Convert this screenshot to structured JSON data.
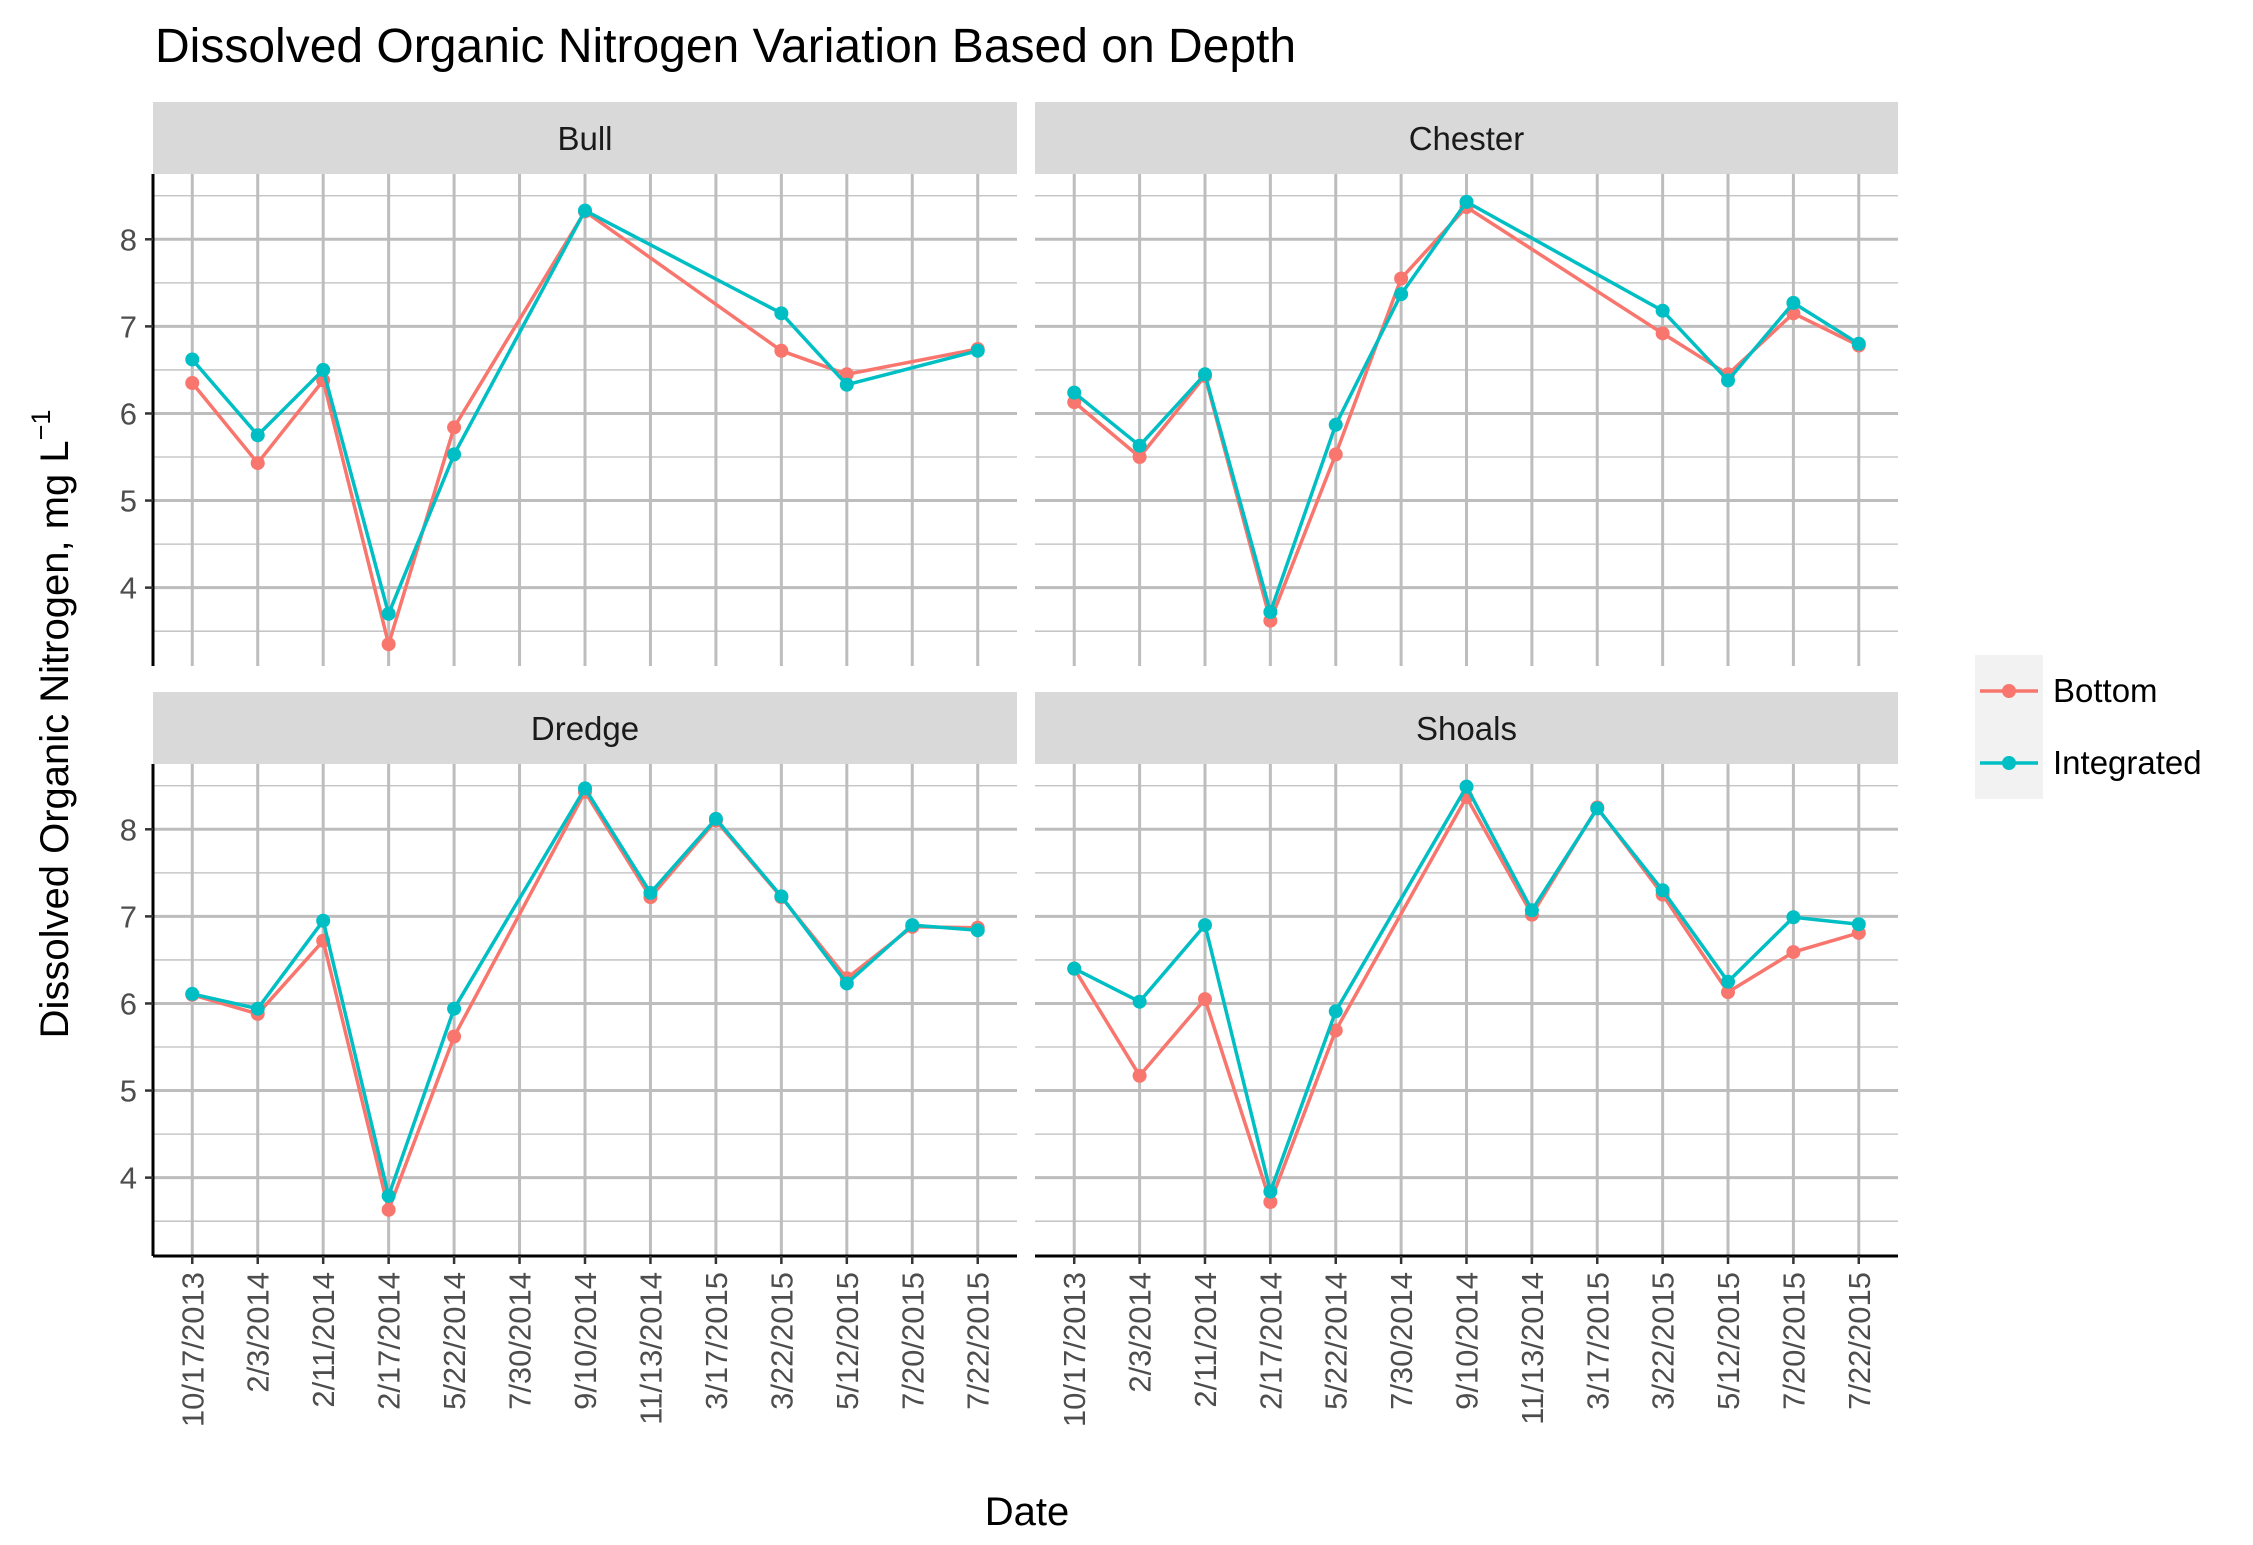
{
  "chart_data": {
    "type": "line",
    "title": "Dissolved Organic Nitrogen Variation Based on Depth",
    "xlabel": "Date",
    "ylabel": "Dissolved Organic Nitrogen, mg L",
    "ylabel_superscript": "−1",
    "ylim": [
      3.1,
      8.75
    ],
    "y_ticks": [
      4,
      5,
      6,
      7,
      8
    ],
    "categories": [
      "10/17/2013",
      "2/3/2014",
      "2/11/2014",
      "2/17/2014",
      "5/22/2014",
      "7/30/2014",
      "9/10/2014",
      "11/13/2014",
      "3/17/2015",
      "3/22/2015",
      "5/12/2015",
      "7/20/2015",
      "7/22/2015"
    ],
    "legend": {
      "position": "right",
      "entries": [
        {
          "name": "Bottom",
          "color": "#F8766D"
        },
        {
          "name": "Integrated",
          "color": "#00BFC4"
        }
      ]
    },
    "grid": true,
    "panels": [
      {
        "name": "Bull",
        "series": [
          {
            "name": "Bottom",
            "color": "#F8766D",
            "values": [
              6.35,
              5.43,
              6.38,
              3.35,
              5.84,
              null,
              8.32,
              null,
              null,
              6.72,
              6.45,
              null,
              6.74
            ]
          },
          {
            "name": "Integrated",
            "color": "#00BFC4",
            "values": [
              6.62,
              5.75,
              6.5,
              3.7,
              5.53,
              null,
              8.33,
              null,
              null,
              7.15,
              6.33,
              null,
              6.72
            ]
          }
        ]
      },
      {
        "name": "Chester",
        "series": [
          {
            "name": "Bottom",
            "color": "#F8766D",
            "values": [
              6.13,
              5.5,
              6.43,
              3.62,
              5.53,
              7.55,
              8.37,
              null,
              null,
              6.92,
              6.45,
              7.15,
              6.78
            ]
          },
          {
            "name": "Integrated",
            "color": "#00BFC4",
            "values": [
              6.24,
              5.63,
              6.45,
              3.72,
              5.87,
              7.37,
              8.43,
              null,
              null,
              7.18,
              6.38,
              7.27,
              6.8
            ]
          }
        ]
      },
      {
        "name": "Dredge",
        "series": [
          {
            "name": "Bottom",
            "color": "#F8766D",
            "values": [
              6.1,
              5.88,
              6.72,
              3.63,
              5.62,
              null,
              8.43,
              7.22,
              8.1,
              7.22,
              6.29,
              6.88,
              6.87
            ]
          },
          {
            "name": "Integrated",
            "color": "#00BFC4",
            "values": [
              6.11,
              5.94,
              6.95,
              3.79,
              5.94,
              null,
              8.47,
              7.27,
              8.12,
              7.23,
              6.23,
              6.9,
              6.84
            ]
          }
        ]
      },
      {
        "name": "Shoals",
        "series": [
          {
            "name": "Bottom",
            "color": "#F8766D",
            "values": [
              6.4,
              5.17,
              6.05,
              3.72,
              5.69,
              null,
              8.37,
              7.02,
              8.25,
              7.25,
              6.13,
              6.59,
              6.81
            ]
          },
          {
            "name": "Integrated",
            "color": "#00BFC4",
            "values": [
              6.4,
              6.02,
              6.9,
              3.84,
              5.91,
              null,
              8.49,
              7.07,
              8.24,
              7.3,
              6.25,
              6.99,
              6.91
            ]
          }
        ]
      }
    ]
  }
}
